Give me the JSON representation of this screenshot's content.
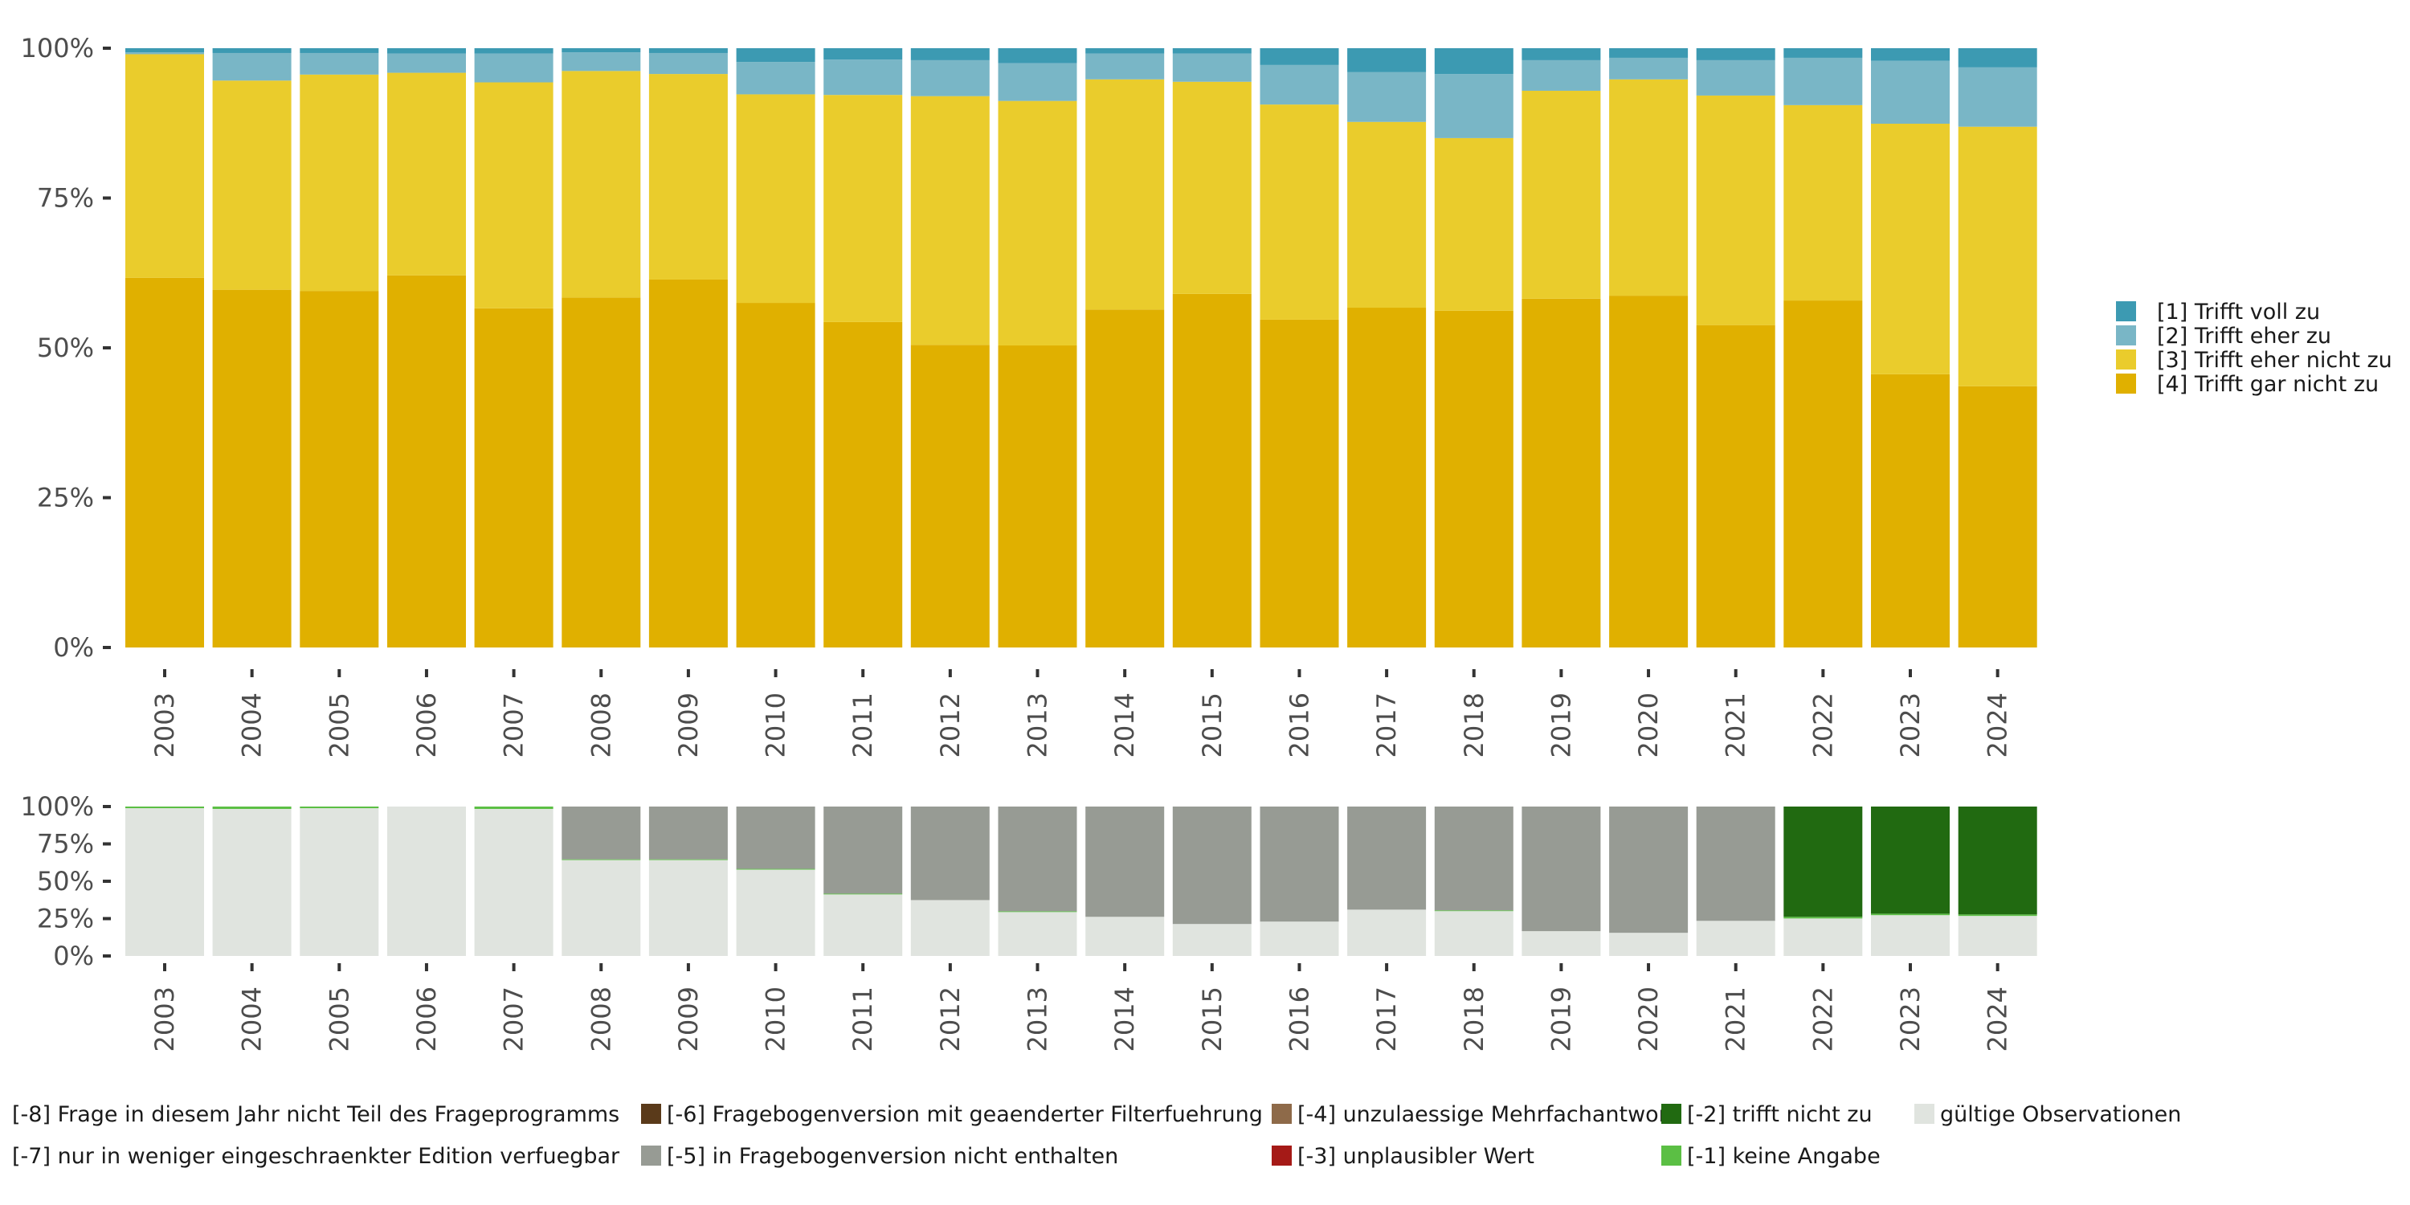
{
  "chart_data": [
    {
      "type": "bar",
      "stacked": true,
      "normalized": true,
      "title": "",
      "xlabel": "",
      "ylabel": "",
      "ylim": [
        0,
        100
      ],
      "y_ticks": [
        "0%",
        "25%",
        "50%",
        "75%",
        "100%"
      ],
      "y_tick_values": [
        0,
        25,
        50,
        75,
        100
      ],
      "grid": false,
      "legend_position": "right",
      "categories": [
        "2003",
        "2004",
        "2005",
        "2006",
        "2007",
        "2008",
        "2009",
        "2010",
        "2011",
        "2012",
        "2013",
        "2014",
        "2015",
        "2016",
        "2017",
        "2018",
        "2019",
        "2020",
        "2021",
        "2022",
        "2023",
        "2024"
      ],
      "series": [
        {
          "name": "[4] Trifft gar nicht zu",
          "color": "#E0B000",
          "values": [
            61.7,
            59.7,
            59.5,
            62.1,
            56.6,
            58.4,
            61.4,
            57.5,
            54.3,
            50.5,
            50.4,
            56.4,
            59.0,
            54.7,
            56.7,
            56.2,
            58.2,
            58.7,
            53.8,
            57.9,
            45.6,
            43.6
          ]
        },
        {
          "name": "[3] Trifft eher nicht zu",
          "color": "#EACC2C",
          "values": [
            37.3,
            34.9,
            36.1,
            33.8,
            37.7,
            37.8,
            34.3,
            34.8,
            37.9,
            41.5,
            40.8,
            38.4,
            35.4,
            35.9,
            31.0,
            28.8,
            34.7,
            36.1,
            38.3,
            32.6,
            41.8,
            43.3
          ]
        },
        {
          "name": "[2] Trifft eher zu",
          "color": "#79B6C6",
          "values": [
            0.3,
            4.6,
            3.6,
            3.2,
            4.8,
            3.1,
            3.5,
            5.4,
            5.9,
            6.0,
            6.3,
            4.3,
            4.7,
            6.6,
            8.3,
            10.7,
            5.1,
            3.6,
            5.9,
            7.9,
            10.5,
            9.9
          ]
        },
        {
          "name": "[1] Trifft voll zu",
          "color": "#3C9AB2",
          "values": [
            0.7,
            0.8,
            0.8,
            0.9,
            0.9,
            0.7,
            0.8,
            2.3,
            1.9,
            2.0,
            2.5,
            0.9,
            0.9,
            2.8,
            4.0,
            4.3,
            2.0,
            1.6,
            2.0,
            1.6,
            2.1,
            3.2
          ]
        }
      ],
      "legend": [
        {
          "label": "[1] Trifft voll zu",
          "color": "#3C9AB2"
        },
        {
          "label": "[2] Trifft eher zu",
          "color": "#79B6C6"
        },
        {
          "label": "[3] Trifft eher nicht zu",
          "color": "#EACC2C"
        },
        {
          "label": "[4] Trifft gar nicht zu",
          "color": "#E0B000"
        }
      ]
    },
    {
      "type": "bar",
      "stacked": true,
      "normalized": true,
      "title": "",
      "xlabel": "",
      "ylabel": "",
      "ylim": [
        0,
        100
      ],
      "y_ticks": [
        "0%",
        "25%",
        "50%",
        "75%",
        "100%"
      ],
      "y_tick_values": [
        0,
        25,
        50,
        75,
        100
      ],
      "grid": false,
      "legend_position": "bottom",
      "categories": [
        "2003",
        "2004",
        "2005",
        "2006",
        "2007",
        "2008",
        "2009",
        "2010",
        "2011",
        "2012",
        "2013",
        "2014",
        "2015",
        "2016",
        "2017",
        "2018",
        "2019",
        "2020",
        "2021",
        "2022",
        "2023",
        "2024"
      ],
      "series": [
        {
          "name": "gültige Observationen",
          "color": "#E0E4DF",
          "values": [
            98.9,
            98.4,
            98.9,
            100,
            98.4,
            64.2,
            64.2,
            57.8,
            41.2,
            37.4,
            29.4,
            26.2,
            21.4,
            23.0,
            31.0,
            30.0,
            16.6,
            15.5,
            23.5,
            25.1,
            27.3,
            26.8
          ]
        },
        {
          "name": "[-1] keine Angabe",
          "color": "#5BBF44",
          "values": [
            1.1,
            1.6,
            1.1,
            0,
            1.6,
            0.5,
            0.5,
            0.5,
            0.5,
            0,
            0.5,
            0,
            0,
            0,
            0,
            0.5,
            0,
            0,
            0,
            1.1,
            1.0,
            1.0
          ]
        },
        {
          "name": "[-2] trifft nicht zu",
          "color": "#216A11",
          "values": [
            0,
            0,
            0,
            0,
            0,
            0,
            0,
            0,
            0,
            0,
            0,
            0,
            0,
            0,
            0,
            0,
            0,
            0,
            0,
            73.8,
            71.7,
            72.2
          ]
        },
        {
          "name": "[-5] in Fragebogenversion nicht enthalten",
          "color": "#979B94",
          "values": [
            0,
            0,
            0,
            0,
            0,
            35.3,
            35.3,
            41.7,
            58.3,
            62.6,
            70.1,
            73.8,
            78.6,
            77.0,
            69.0,
            69.5,
            83.4,
            84.5,
            76.5,
            0,
            0,
            0
          ]
        }
      ],
      "legend": [
        {
          "label": "[-8] Frage in diesem Jahr nicht Teil des Frageprogramms",
          "color": "#FFFFFF"
        },
        {
          "label": "[-7] nur in weniger eingeschraenkter Edition verfuegbar",
          "color": "#FFFFFF"
        },
        {
          "label": "[-6] Fragebogenversion mit geaenderter Filterfuehrung",
          "color": "#5A3A1A"
        },
        {
          "label": "[-5] in Fragebogenversion nicht enthalten",
          "color": "#979B94"
        },
        {
          "label": "[-4] unzulaessige Mehrfachantwort",
          "color": "#8E6A49"
        },
        {
          "label": "[-3] unplausibler Wert",
          "color": "#A51A17"
        },
        {
          "label": "[-2] trifft nicht zu",
          "color": "#216A11"
        },
        {
          "label": "[-1] keine Angabe",
          "color": "#5BBF44"
        },
        {
          "label": "gültige Observationen",
          "color": "#E0E4DF"
        }
      ]
    }
  ]
}
